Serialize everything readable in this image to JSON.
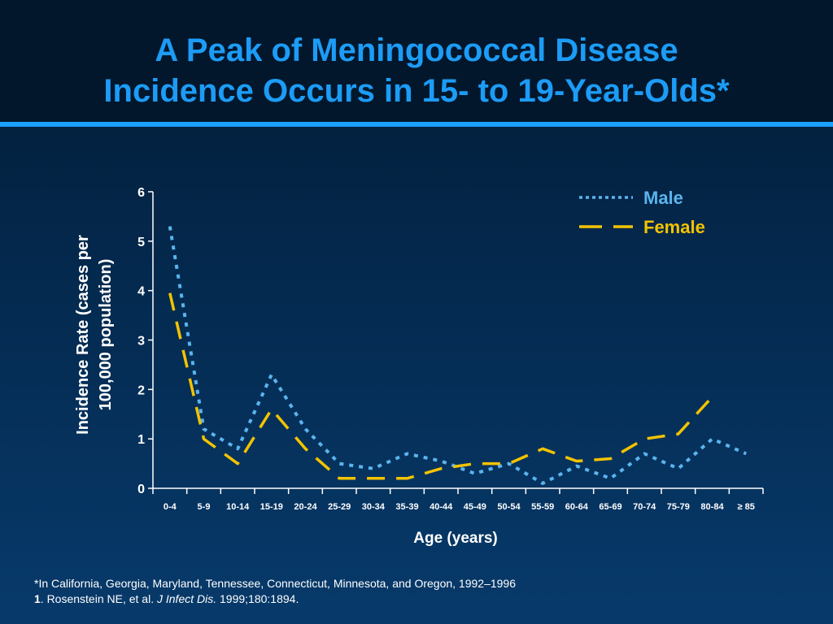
{
  "slide": {
    "title_line1": "A Peak of Meningococcal Disease",
    "title_line2": "Incidence Occurs in 15- to 19-Year-Olds*",
    "footnote_line1": "*In California, Georgia, Maryland, Tennessee, Connecticut, Minnesota, and Oregon, 1992–1996",
    "footnote_ref_number": "1",
    "footnote_ref_authors": ". Rosenstein NE, et al. ",
    "footnote_ref_journal": "J Infect Dis.",
    "footnote_ref_citation": " 1999;180:1894."
  },
  "colors": {
    "title": "#1c9cf6",
    "male": "#5ab4ee",
    "female": "#f3c300",
    "axis": "#ffffff"
  },
  "chart_data": {
    "type": "line",
    "xlabel": "Age (years)",
    "ylabel_line1": "Incidence Rate (cases per",
    "ylabel_line2": "100,000 population)",
    "ylim": [
      0,
      6
    ],
    "yticks": [
      "0",
      "1",
      "2",
      "3",
      "4",
      "5",
      "6"
    ],
    "grid": false,
    "legend": "top-right",
    "categories": [
      "0-4",
      "5-9",
      "10-14",
      "15-19",
      "20-24",
      "25-29",
      "30-34",
      "35-39",
      "40-44",
      "45-49",
      "50-54",
      "55-59",
      "60-64",
      "65-69",
      "70-74",
      "75-79",
      "80-84",
      "≥ 85"
    ],
    "series": [
      {
        "name": "Male",
        "style": "dotted",
        "values": [
          5.3,
          1.2,
          0.8,
          2.3,
          1.2,
          0.5,
          0.4,
          0.7,
          0.55,
          0.3,
          0.5,
          0.1,
          0.45,
          0.2,
          0.7,
          0.4,
          1.0,
          0.7
        ]
      },
      {
        "name": "Female",
        "style": "dashed",
        "values": [
          3.95,
          1.0,
          0.5,
          1.6,
          0.8,
          0.2,
          0.2,
          0.2,
          0.4,
          0.5,
          0.5,
          0.8,
          0.55,
          0.6,
          1.0,
          1.1,
          1.85,
          null
        ]
      }
    ]
  }
}
